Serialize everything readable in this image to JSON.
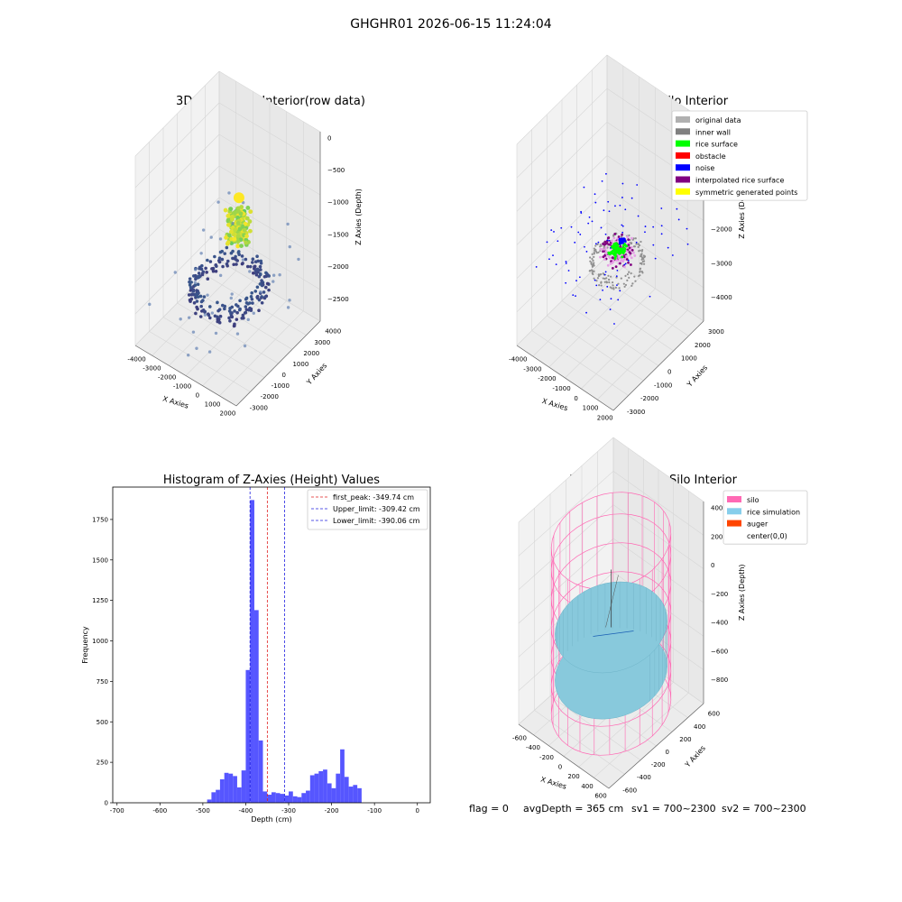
{
  "figure": {
    "suptitle": "GHGHR01 2026-06-15 11:24:04",
    "footer": {
      "flag": "flag = 0",
      "avg_depth": "avgDepth = 365 cm",
      "sv1": "sv1 = 700~2300",
      "sv2": "sv2 = 700~2300"
    }
  },
  "colors": {
    "pane_left": "#f2f2f2",
    "pane_right": "#e8e8e8",
    "pane_floor": "#ececec",
    "grid": "#d6d6d6",
    "hist_bar": "#4d4dff",
    "peak_line": "#e02020",
    "limit_line": "#2020e0",
    "silo_wire": "#ff69b4",
    "rice": "#88c9dc"
  },
  "chart_data": [
    {
      "type": "scatter",
      "subtype": "3d",
      "title": "3D Plot of Silo Interior(row data)",
      "xlabel": "X Axies",
      "ylabel": "Y Axies",
      "zlabel": "Z Axies (Depth)",
      "x_ticks": [
        "-4000",
        "-3000",
        "-2000",
        "-1000",
        "0",
        "1000",
        "2000"
      ],
      "y_ticks": [
        "-3000",
        "-2000",
        "-1000",
        "0",
        "1000",
        "2000",
        "3000",
        "4000"
      ],
      "z_ticks": [
        "0",
        "−500",
        "−1000",
        "−1500",
        "−2000",
        "−2500"
      ],
      "xlim": [
        -4300,
        2300
      ],
      "ylim": [
        -3300,
        4300
      ],
      "zlim": [
        -2800,
        150
      ],
      "colormap": "viridis (by depth)"
    },
    {
      "type": "scatter",
      "subtype": "3d",
      "title": "3D classify of Silo Interior",
      "xlabel": "X Axies",
      "ylabel": "Y Axies",
      "zlabel": "Z Axies (Depth)",
      "x_ticks": [
        "-4000",
        "-3000",
        "-2000",
        "-1000",
        "0",
        "1000",
        "2000"
      ],
      "y_ticks": [
        "-3000",
        "-2000",
        "-1000",
        "0",
        "1000",
        "2000",
        "3000"
      ],
      "z_ticks": [
        "1000",
        "0",
        "−1000",
        "−2000",
        "−3000",
        "−4000"
      ],
      "xlim": [
        -4300,
        2300
      ],
      "ylim": [
        -3300,
        3300
      ],
      "zlim": [
        -4500,
        1500
      ],
      "legend_position": "top-right",
      "legend": [
        {
          "label": "original data",
          "color": "#b0b0b0"
        },
        {
          "label": "inner wall",
          "color": "#808080"
        },
        {
          "label": "rice surface",
          "color": "#00ff00"
        },
        {
          "label": "obstacle",
          "color": "#ff0000"
        },
        {
          "label": "noise",
          "color": "#0000ff"
        },
        {
          "label": "interpolated rice surface",
          "color": "#800080"
        },
        {
          "label": "symmetric generated points",
          "color": "#ffff00"
        }
      ]
    },
    {
      "type": "bar",
      "subtype": "histogram",
      "title": "Histogram of Z-Axies (Height) Values",
      "xlabel": "Depth (cm)",
      "ylabel": "Frequency",
      "xlim": [
        -710,
        30
      ],
      "ylim": [
        0,
        1950
      ],
      "x_ticks": [
        -700,
        -600,
        -500,
        -400,
        -300,
        -200,
        -100,
        0
      ],
      "y_ticks": [
        0,
        250,
        500,
        750,
        1000,
        1250,
        1500,
        1750
      ],
      "bin_width": 10,
      "bin_start": -490,
      "values": [
        20,
        65,
        80,
        145,
        185,
        180,
        165,
        95,
        200,
        820,
        1870,
        1190,
        385,
        70,
        50,
        65,
        60,
        55,
        45,
        70,
        40,
        35,
        60,
        75,
        170,
        180,
        195,
        205,
        120,
        90,
        180,
        330,
        160,
        100,
        110,
        90
      ],
      "legend_position": "top-right",
      "legend": [
        {
          "label": "first_peak: -349.74 cm",
          "color": "#e02020"
        },
        {
          "label": "Upper_limit: -309.42 cm",
          "color": "#2020e0"
        },
        {
          "label": "Lower_limit: -390.06 cm",
          "color": "#2020e0"
        }
      ],
      "vlines": [
        -349.74,
        -309.42,
        -390.06
      ]
    },
    {
      "type": "area",
      "subtype": "3d-surface",
      "title": "3D simulation of Silo Interior",
      "xlabel": "X Axies",
      "ylabel": "Y Axies",
      "zlabel": "Z Axies (Depth)",
      "x_ticks": [
        "-600",
        "-400",
        "-200",
        "0",
        "200",
        "400",
        "600"
      ],
      "y_ticks": [
        "-600",
        "-400",
        "-200",
        "0",
        "200",
        "400",
        "600"
      ],
      "z_ticks": [
        "400",
        "200",
        "0",
        "−200",
        "−400",
        "−600",
        "−800"
      ],
      "xlim": [
        -700,
        700
      ],
      "ylim": [
        -700,
        700
      ],
      "zlim": [
        -900,
        500
      ],
      "legend_position": "top-right",
      "legend": [
        {
          "label": "silo",
          "color": "#ff69b4"
        },
        {
          "label": "rice simulation",
          "color": "#87ceeb"
        },
        {
          "label": "auger",
          "color": "#ff4500"
        },
        {
          "label": "center(0,0)",
          "color": ""
        }
      ]
    }
  ]
}
